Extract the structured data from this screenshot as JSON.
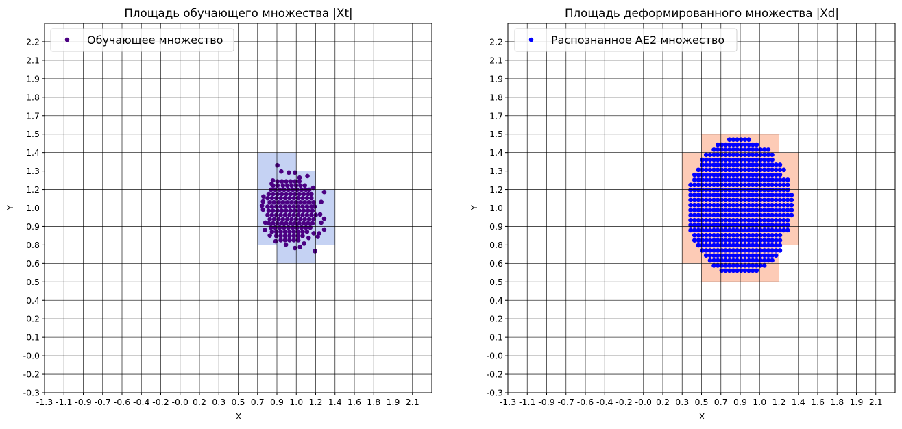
{
  "chart_data": [
    {
      "type": "scatter",
      "title": "Площадь обучающего множества |Xt|",
      "xlabel": "X",
      "ylabel": "Y",
      "xlim": [
        -1.259,
        2.281
      ],
      "ylim": [
        -0.29,
        2.35
      ],
      "grid": true,
      "xticks": [
        -1.259,
        -1.082,
        -0.905,
        -0.728,
        -0.551,
        -0.374,
        -0.197,
        -0.02,
        0.157,
        0.334,
        0.511,
        0.688,
        0.865,
        1.042,
        1.219,
        1.396,
        1.573,
        1.75,
        1.927,
        2.104
      ],
      "xtick_labels": [
        "-1.3",
        "-1.1",
        "-0.9",
        "-0.7",
        "-0.6",
        "-0.4",
        "-0.2",
        "-0.0",
        "0.2",
        "0.3",
        "0.5",
        "0.7",
        "0.9",
        "1.0",
        "1.2",
        "1.4",
        "1.6",
        "1.8",
        "1.9",
        "2.1"
      ],
      "yticks": [
        -0.29,
        -0.158,
        -0.026,
        0.106,
        0.238,
        0.37,
        0.502,
        0.634,
        0.766,
        0.898,
        1.03,
        1.162,
        1.294,
        1.426,
        1.558,
        1.69,
        1.822,
        1.954,
        2.086,
        2.218
      ],
      "ytick_labels": [
        "-0.3",
        "-0.2",
        "-0.0",
        "0.1",
        "0.2",
        "0.4",
        "0.5",
        "0.6",
        "0.8",
        "0.9",
        "1.0",
        "1.2",
        "1.3",
        "1.4",
        "1.5",
        "1.7",
        "1.8",
        "1.9",
        "2.1",
        "2.2"
      ],
      "legend": {
        "placement": "upper-left",
        "entries": [
          {
            "label": "Обучающее множество",
            "color": "#4b0082"
          }
        ]
      },
      "regions": [
        {
          "x": [
            0.688,
            0.865
          ],
          "y": [
            0.766,
            1.426
          ],
          "color": "#c5d2f3"
        },
        {
          "x": [
            0.865,
            1.042
          ],
          "y": [
            0.634,
            1.426
          ],
          "color": "#c5d2f3"
        },
        {
          "x": [
            1.042,
            1.219
          ],
          "y": [
            0.634,
            1.294
          ],
          "color": "#c5d2f3"
        },
        {
          "x": [
            1.219,
            1.396
          ],
          "y": [
            0.766,
            1.162
          ],
          "color": "#c5d2f3"
        }
      ],
      "series": [
        {
          "name": "Обучающее множество",
          "color": "#4b0082",
          "rows": [
            {
              "y": 1.22,
              "x": [
                0.87,
                0.91,
                0.95,
                0.99,
                1.03,
                1.07
              ]
            },
            {
              "y": 1.19,
              "x": [
                0.83,
                0.87,
                0.92,
                0.96,
                1.0,
                1.04,
                1.08,
                1.12
              ]
            },
            {
              "y": 1.16,
              "x": [
                0.81,
                0.85,
                0.89,
                0.93,
                0.97,
                1.01,
                1.05,
                1.09,
                1.13,
                1.16
              ]
            },
            {
              "y": 1.13,
              "x": [
                0.79,
                0.83,
                0.87,
                0.91,
                0.95,
                0.99,
                1.03,
                1.07,
                1.11,
                1.15,
                1.18
              ]
            },
            {
              "y": 1.1,
              "x": [
                0.78,
                0.82,
                0.86,
                0.9,
                0.94,
                0.98,
                1.02,
                1.06,
                1.1,
                1.14,
                1.18
              ]
            },
            {
              "y": 1.07,
              "x": [
                0.8,
                0.84,
                0.88,
                0.92,
                0.96,
                1.0,
                1.04,
                1.08,
                1.12,
                1.16,
                1.2
              ]
            },
            {
              "y": 1.04,
              "x": [
                0.78,
                0.82,
                0.86,
                0.9,
                0.94,
                0.98,
                1.02,
                1.06,
                1.1,
                1.14,
                1.18,
                1.21
              ]
            },
            {
              "y": 1.01,
              "x": [
                0.79,
                0.83,
                0.87,
                0.91,
                0.95,
                0.99,
                1.03,
                1.07,
                1.11,
                1.15,
                1.19
              ]
            },
            {
              "y": 0.98,
              "x": [
                0.78,
                0.82,
                0.86,
                0.9,
                0.94,
                0.98,
                1.02,
                1.06,
                1.1,
                1.14,
                1.18,
                1.22
              ]
            },
            {
              "y": 0.95,
              "x": [
                0.8,
                0.84,
                0.88,
                0.92,
                0.96,
                1.0,
                1.04,
                1.08,
                1.12,
                1.16,
                1.2
              ]
            },
            {
              "y": 0.92,
              "x": [
                0.79,
                0.83,
                0.87,
                0.91,
                0.95,
                0.99,
                1.03,
                1.07,
                1.11,
                1.15,
                1.19
              ]
            },
            {
              "y": 0.89,
              "x": [
                0.81,
                0.85,
                0.89,
                0.93,
                0.97,
                1.01,
                1.05,
                1.09,
                1.13,
                1.17
              ]
            },
            {
              "y": 0.86,
              "x": [
                0.82,
                0.86,
                0.9,
                0.94,
                0.98,
                1.02,
                1.06,
                1.1,
                1.14
              ]
            },
            {
              "y": 0.83,
              "x": [
                0.86,
                0.9,
                0.94,
                0.98,
                1.02,
                1.06,
                1.1
              ]
            },
            {
              "y": 0.8,
              "x": [
                0.9,
                0.94,
                0.98,
                1.02,
                1.06
              ]
            }
          ],
          "points": [
            [
              0.869,
              1.335
            ],
            [
              0.905,
              1.291
            ],
            [
              0.974,
              1.283
            ],
            [
              1.03,
              1.283
            ],
            [
              1.144,
              1.258
            ],
            [
              0.828,
              1.227
            ],
            [
              0.817,
              1.203
            ],
            [
              1.072,
              1.247
            ],
            [
              1.297,
              1.144
            ],
            [
              1.27,
              1.073
            ],
            [
              1.197,
              1.174
            ],
            [
              0.742,
              1.112
            ],
            [
              0.738,
              1.076
            ],
            [
              0.728,
              1.047
            ],
            [
              0.738,
              1.018
            ],
            [
              1.26,
              0.984
            ],
            [
              1.297,
              0.954
            ],
            [
              1.27,
              0.925
            ],
            [
              0.759,
              0.925
            ],
            [
              0.755,
              0.873
            ],
            [
              1.297,
              0.876
            ],
            [
              1.251,
              0.849
            ],
            [
              1.201,
              0.849
            ],
            [
              1.238,
              0.824
            ],
            [
              0.853,
              0.792
            ],
            [
              1.113,
              0.776
            ],
            [
              1.076,
              0.751
            ],
            [
              1.213,
              0.722
            ],
            [
              1.03,
              0.743
            ],
            [
              0.947,
              0.767
            ],
            [
              1.155,
              0.816
            ],
            [
              0.8,
              0.833
            ]
          ]
        }
      ]
    },
    {
      "type": "scatter",
      "title": "Площадь деформированного множества |Xd|",
      "xlabel": "X",
      "ylabel": "Y",
      "xlim": [
        -1.259,
        2.281
      ],
      "ylim": [
        -0.29,
        2.35
      ],
      "grid": true,
      "xticks": [
        -1.259,
        -1.082,
        -0.905,
        -0.728,
        -0.551,
        -0.374,
        -0.197,
        -0.02,
        0.157,
        0.334,
        0.511,
        0.688,
        0.865,
        1.042,
        1.219,
        1.396,
        1.573,
        1.75,
        1.927,
        2.104
      ],
      "xtick_labels": [
        "-1.3",
        "-1.1",
        "-0.9",
        "-0.7",
        "-0.6",
        "-0.4",
        "-0.2",
        "-0.0",
        "0.2",
        "0.3",
        "0.5",
        "0.7",
        "0.9",
        "1.0",
        "1.2",
        "1.4",
        "1.6",
        "1.8",
        "1.9",
        "2.1"
      ],
      "yticks": [
        -0.29,
        -0.158,
        -0.026,
        0.106,
        0.238,
        0.37,
        0.502,
        0.634,
        0.766,
        0.898,
        1.03,
        1.162,
        1.294,
        1.426,
        1.558,
        1.69,
        1.822,
        1.954,
        2.086,
        2.218
      ],
      "ytick_labels": [
        "-0.3",
        "-0.2",
        "-0.0",
        "0.1",
        "0.2",
        "0.4",
        "0.5",
        "0.6",
        "0.8",
        "0.9",
        "1.0",
        "1.2",
        "1.3",
        "1.4",
        "1.5",
        "1.7",
        "1.8",
        "1.9",
        "2.1",
        "2.2"
      ],
      "legend": {
        "placement": "upper-left",
        "entries": [
          {
            "label": "Распознанное AE2 множество",
            "color": "#0000ff"
          }
        ]
      },
      "regions": [
        {
          "x": [
            0.334,
            0.511
          ],
          "y": [
            0.634,
            1.426
          ],
          "color": "#fdcbb6"
        },
        {
          "x": [
            0.511,
            1.219
          ],
          "y": [
            0.502,
            1.558
          ],
          "color": "#fdcbb6"
        },
        {
          "x": [
            1.219,
            1.396
          ],
          "y": [
            0.766,
            1.426
          ],
          "color": "#fdcbb6"
        }
      ],
      "series": [
        {
          "name": "Распознанное AE2 множество",
          "color": "#0000ff",
          "x_step": 0.0355,
          "row_ranges": [
            {
              "y": 1.519,
              "x_from": 0.766,
              "x_to": 0.944
            },
            {
              "y": 1.483,
              "x_from": 0.66,
              "x_to": 1.05
            },
            {
              "y": 1.447,
              "x_from": 0.624,
              "x_to": 1.121
            },
            {
              "y": 1.411,
              "x_from": 0.553,
              "x_to": 1.157
            },
            {
              "y": 1.375,
              "x_from": 0.518,
              "x_to": 1.192
            },
            {
              "y": 1.339,
              "x_from": 0.518,
              "x_to": 1.228
            },
            {
              "y": 1.303,
              "x_from": 0.482,
              "x_to": 1.263
            },
            {
              "y": 1.267,
              "x_from": 0.447,
              "x_to": 1.263
            },
            {
              "y": 1.231,
              "x_from": 0.447,
              "x_to": 1.299
            },
            {
              "y": 1.195,
              "x_from": 0.411,
              "x_to": 1.299
            },
            {
              "y": 1.159,
              "x_from": 0.411,
              "x_to": 1.299
            },
            {
              "y": 1.123,
              "x_from": 0.411,
              "x_to": 1.334
            },
            {
              "y": 1.087,
              "x_from": 0.411,
              "x_to": 1.334
            },
            {
              "y": 1.051,
              "x_from": 0.411,
              "x_to": 1.334
            },
            {
              "y": 1.015,
              "x_from": 0.411,
              "x_to": 1.334
            },
            {
              "y": 0.979,
              "x_from": 0.411,
              "x_to": 1.334
            },
            {
              "y": 0.943,
              "x_from": 0.411,
              "x_to": 1.299
            },
            {
              "y": 0.907,
              "x_from": 0.411,
              "x_to": 1.299
            },
            {
              "y": 0.871,
              "x_from": 0.411,
              "x_to": 1.299
            },
            {
              "y": 0.835,
              "x_from": 0.447,
              "x_to": 1.263
            },
            {
              "y": 0.799,
              "x_from": 0.447,
              "x_to": 1.263
            },
            {
              "y": 0.763,
              "x_from": 0.482,
              "x_to": 1.228
            },
            {
              "y": 0.727,
              "x_from": 0.518,
              "x_to": 1.228
            },
            {
              "y": 0.691,
              "x_from": 0.553,
              "x_to": 1.192
            },
            {
              "y": 0.655,
              "x_from": 0.589,
              "x_to": 1.157
            },
            {
              "y": 0.619,
              "x_from": 0.624,
              "x_to": 1.086
            },
            {
              "y": 0.583,
              "x_from": 0.695,
              "x_to": 1.015
            }
          ]
        }
      ]
    }
  ]
}
